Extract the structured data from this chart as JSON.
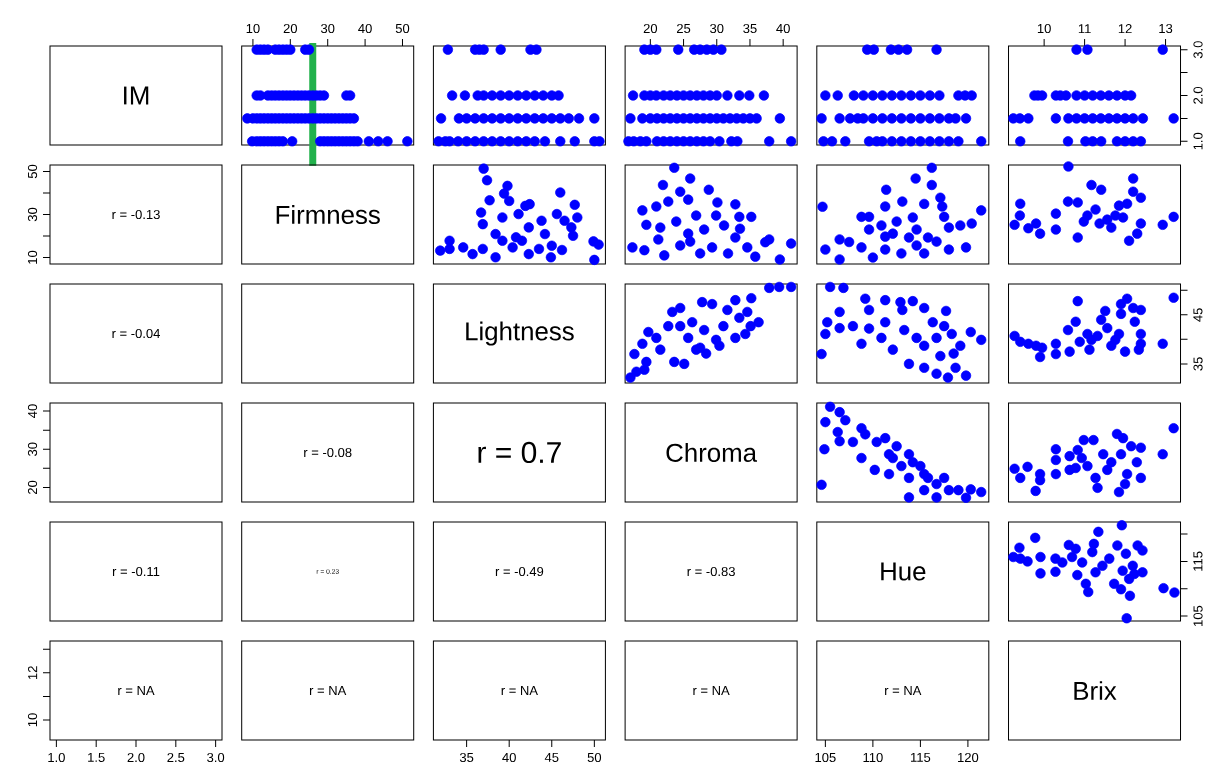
{
  "chart_data": [
    {
      "type": "other",
      "title": "IM"
    },
    {
      "type": "scatter",
      "color": "#0000ff",
      "marker": "circle",
      "xlim": [
        7,
        53
      ],
      "ylim": [
        0.92,
        3.08
      ],
      "xticks": [
        10,
        20,
        30,
        40,
        50
      ],
      "tick_labels": "x",
      "ref_lines": [
        {
          "axis": "x",
          "value": 26,
          "color": "#22b14c"
        }
      ],
      "x": [
        11,
        12,
        13,
        14,
        16,
        17,
        18,
        19,
        20,
        24,
        25,
        11,
        12,
        14,
        15,
        16,
        17,
        18,
        19,
        20,
        21,
        22,
        23,
        24,
        25,
        26,
        27,
        28,
        29,
        35,
        36,
        8.5,
        10,
        11,
        12,
        13,
        14,
        15,
        16,
        17,
        18,
        19,
        20,
        21,
        22,
        23,
        24,
        25,
        26,
        27,
        28,
        29,
        30,
        31,
        32,
        33,
        34,
        35,
        36,
        37,
        9.8,
        11,
        12,
        13,
        14,
        15,
        16,
        17,
        18,
        20.5,
        28,
        29,
        30,
        31,
        32,
        33,
        34,
        35,
        36,
        37,
        38,
        41,
        43.5,
        46,
        51.3
      ],
      "values": [
        3,
        3,
        3,
        3,
        3,
        3,
        3,
        3,
        3,
        3,
        3,
        2,
        2,
        2,
        2,
        2,
        2,
        2,
        2,
        2,
        2,
        2,
        2,
        2,
        2,
        2,
        2,
        2,
        2,
        2,
        2,
        1.5,
        1.5,
        1.5,
        1.5,
        1.5,
        1.5,
        1.5,
        1.5,
        1.5,
        1.5,
        1.5,
        1.5,
        1.5,
        1.5,
        1.5,
        1.5,
        1.5,
        1.5,
        1.5,
        1.5,
        1.5,
        1.5,
        1.5,
        1.5,
        1.5,
        1.5,
        1.5,
        1.5,
        1.5,
        1,
        1,
        1,
        1,
        1,
        1,
        1,
        1,
        1,
        1,
        1,
        1,
        1,
        1,
        1,
        1,
        1,
        1,
        1,
        1,
        1,
        1,
        1,
        1,
        1
      ]
    },
    {
      "type": "scatter",
      "color": "#0000ff",
      "marker": "circle",
      "xlim": [
        31.1,
        51.3
      ],
      "ylim": [
        0.92,
        3.08
      ],
      "tick_labels": false,
      "x": [
        32.8,
        36,
        36.5,
        37,
        39,
        42.5,
        43.2,
        33.3,
        34.8,
        36.3,
        37,
        38,
        39,
        40,
        41,
        42,
        43,
        44,
        45,
        45.8,
        32,
        34.1,
        35,
        36,
        37,
        38,
        39,
        40,
        41,
        42,
        43,
        44,
        45,
        46,
        47,
        48.2,
        50,
        31.7,
        32.5,
        33,
        34,
        35,
        36,
        37,
        38,
        39,
        40,
        41,
        42,
        43,
        44.2,
        46,
        47.7,
        50,
        50.6
      ],
      "values": [
        3,
        3,
        3,
        3,
        3,
        3,
        3,
        2,
        2,
        2,
        2,
        2,
        2,
        2,
        2,
        2,
        2,
        2,
        2,
        2,
        1.5,
        1.5,
        1.5,
        1.5,
        1.5,
        1.5,
        1.5,
        1.5,
        1.5,
        1.5,
        1.5,
        1.5,
        1.5,
        1.5,
        1.5,
        1.5,
        1.5,
        1,
        1,
        1,
        1,
        1,
        1,
        1,
        1,
        1,
        1,
        1,
        1,
        1,
        1,
        1,
        1,
        1,
        1
      ]
    },
    {
      "type": "scatter",
      "color": "#0000ff",
      "marker": "circle",
      "xlim": [
        16.2,
        42.1
      ],
      "ylim": [
        0.92,
        3.08
      ],
      "xticks": [
        20,
        25,
        30,
        35,
        40
      ],
      "tick_labels": "x",
      "x": [
        19.1,
        20,
        20.9,
        24.2,
        26.6,
        27.5,
        28.5,
        29.5,
        30.7,
        17.4,
        19.1,
        20,
        20.9,
        22,
        23,
        24,
        25,
        26,
        27,
        28,
        29,
        30,
        31.6,
        33.4,
        34.9,
        37.1,
        17,
        18.8,
        20,
        21,
        22,
        23,
        24,
        25,
        26,
        27,
        28,
        29,
        30,
        31,
        32,
        33,
        34,
        35,
        36,
        39.5,
        16.7,
        17.5,
        18.5,
        19.4,
        21,
        22,
        23,
        24,
        25,
        26,
        27,
        28,
        29,
        30.4,
        32.2,
        33.1,
        37.9,
        41.2
      ],
      "values": [
        3,
        3,
        3,
        3,
        3,
        3,
        3,
        3,
        3,
        2,
        2,
        2,
        2,
        2,
        2,
        2,
        2,
        2,
        2,
        2,
        2,
        2,
        2,
        2,
        2,
        2,
        1.5,
        1.5,
        1.5,
        1.5,
        1.5,
        1.5,
        1.5,
        1.5,
        1.5,
        1.5,
        1.5,
        1.5,
        1.5,
        1.5,
        1.5,
        1.5,
        1.5,
        1.5,
        1.5,
        1.5,
        1,
        1,
        1,
        1,
        1,
        1,
        1,
        1,
        1,
        1,
        1,
        1,
        1,
        1,
        1,
        1,
        1,
        1
      ]
    },
    {
      "type": "scatter",
      "color": "#0000ff",
      "marker": "circle",
      "xlim": [
        104.1,
        122.2
      ],
      "ylim": [
        0.92,
        3.08
      ],
      "tick_labels": false,
      "x": [
        109.4,
        110.1,
        111.9,
        112.7,
        113.6,
        116.7,
        105,
        106.3,
        108,
        109,
        110,
        111,
        112,
        113,
        114,
        115,
        116,
        117,
        119,
        119.7,
        120.4,
        104.6,
        106.5,
        107.6,
        108.4,
        109,
        110,
        111,
        112,
        113,
        114,
        115,
        116,
        117,
        118,
        118.7,
        119.8,
        104.8,
        105.7,
        107.1,
        109.6,
        110.4,
        111,
        112,
        113,
        114,
        115,
        116,
        117,
        118,
        119,
        121.4
      ],
      "values": [
        3,
        3,
        3,
        3,
        3,
        3,
        2,
        2,
        2,
        2,
        2,
        2,
        2,
        2,
        2,
        2,
        2,
        2,
        2,
        2,
        2,
        1.5,
        1.5,
        1.5,
        1.5,
        1.5,
        1.5,
        1.5,
        1.5,
        1.5,
        1.5,
        1.5,
        1.5,
        1.5,
        1.5,
        1.5,
        1.5,
        1,
        1,
        1,
        1,
        1,
        1,
        1,
        1,
        1,
        1,
        1,
        1,
        1,
        1,
        1
      ]
    },
    {
      "type": "scatter",
      "color": "#0000ff",
      "marker": "circle",
      "xlim": [
        9.12,
        13.37
      ],
      "ylim": [
        0.92,
        3.08
      ],
      "xticks": [
        10,
        11,
        12,
        13
      ],
      "yticks": [
        {
          "value": 1,
          "label": "1.0"
        },
        {
          "value": 1.5,
          "label": null
        },
        {
          "value": 2,
          "label": "2.0"
        },
        {
          "value": 2.5,
          "label": null
        },
        {
          "value": 3,
          "label": "3.0"
        }
      ],
      "x": [
        10.8,
        11.07,
        12.93,
        9.76,
        9.85,
        9.95,
        10.29,
        10.4,
        10.54,
        10.8,
        11,
        11.2,
        11.4,
        11.6,
        11.8,
        12,
        12.15,
        9.24,
        9.4,
        9.61,
        10.29,
        10.6,
        10.8,
        11,
        11.2,
        11.4,
        11.6,
        11.8,
        12,
        12.2,
        12.44,
        13.2,
        9.41,
        10.59,
        11.02,
        11.2,
        11.41,
        11.8,
        12,
        12.2,
        12.39
      ],
      "values": [
        3,
        3,
        3,
        2,
        2,
        2,
        2,
        2,
        2,
        2,
        2,
        2,
        2,
        2,
        2,
        2,
        2,
        1.5,
        1.5,
        1.5,
        1.5,
        1.5,
        1.5,
        1.5,
        1.5,
        1.5,
        1.5,
        1.5,
        1.5,
        1.5,
        1.5,
        1.5,
        1,
        1,
        1,
        1,
        1,
        1,
        1,
        1,
        1
      ]
    },
    {
      "type": "scatter",
      "annotations": [
        "r = -0.13"
      ],
      "xlim": [
        0.92,
        3.08
      ],
      "ylim": [
        7,
        53
      ],
      "yticks": [
        10,
        {
          "value": 20,
          "label": null
        },
        30,
        {
          "value": 40,
          "label": null
        },
        50
      ],
      "tick_labels": "y"
    },
    {
      "type": "other",
      "title": "Firmness"
    },
    {
      "type": "scatter",
      "color": "#0000ff",
      "marker": "circle",
      "xlim": [
        31.1,
        51.3
      ],
      "ylim": [
        7,
        53
      ],
      "tick_labels": false,
      "x": [
        37,
        37.4,
        39.8,
        39.4,
        46,
        47.7,
        37.7,
        42.4,
        48,
        46.5,
        47.3,
        45.6,
        36.7,
        36.9,
        39.2,
        41.1,
        43.8,
        42.3,
        38.4,
        40.8,
        47.5,
        45,
        46.2,
        49.9,
        50.5,
        50,
        31.9,
        33,
        34.6,
        35.7,
        36.9,
        38.4,
        40.4,
        42.3,
        43.5,
        44.9,
        41.5,
        39.2,
        40,
        41.9,
        33,
        44.2
      ],
      "values": [
        51.3,
        45.9,
        43.3,
        39.7,
        40.2,
        34.5,
        36.6,
        34.8,
        28.6,
        27.1,
        24,
        30.2,
        30.9,
        25.5,
        28.6,
        30.2,
        27.1,
        24,
        20.9,
        19.4,
        20.1,
        15.5,
        13.5,
        17.5,
        16,
        8.9,
        13.2,
        17.8,
        14.7,
        11.6,
        14,
        10.1,
        14.7,
        11.6,
        14,
        10.1,
        17.8,
        17.8,
        36.3,
        34,
        14,
        20.9
      ]
    },
    {
      "type": "scatter",
      "color": "#0000ff",
      "marker": "circle",
      "xlim": [
        16.2,
        42.1
      ],
      "ylim": [
        7,
        53
      ],
      "tick_labels": false,
      "x": [
        23.6,
        21.9,
        26,
        24.5,
        28.8,
        18.8,
        20.9,
        22.7,
        25.7,
        32.8,
        30.1,
        35.2,
        33.4,
        19.4,
        21.5,
        23.9,
        26.9,
        28.1,
        31.1,
        33.5,
        17.3,
        19.1,
        21.2,
        22.1,
        24.5,
        26,
        27.5,
        29.3,
        31.7,
        32.8,
        34.6,
        35.8,
        37.3,
        37.9,
        41.2,
        39.5,
        29.9,
        25.7
      ],
      "values": [
        51.7,
        43.7,
        46.7,
        40.6,
        41.5,
        31.9,
        33.7,
        36,
        36.9,
        34.7,
        35.6,
        28.9,
        28.9,
        25.2,
        23.9,
        26.7,
        29.5,
        23,
        24.9,
        23.4,
        14.7,
        13.4,
        18.4,
        11,
        15.6,
        17.4,
        11.9,
        14.7,
        11.9,
        19.3,
        14.7,
        10.4,
        17.1,
        18.4,
        16.5,
        9.1,
        29.5,
        21.1
      ]
    },
    {
      "type": "scatter",
      "color": "#0000ff",
      "marker": "circle",
      "xlim": [
        104.1,
        122.2
      ],
      "ylim": [
        7,
        53
      ],
      "tick_labels": false,
      "x": [
        116.2,
        114.5,
        116.2,
        111.4,
        113.1,
        111.3,
        115.4,
        117.1,
        117.3,
        104.7,
        108.8,
        109.6,
        110.9,
        112.5,
        114.2,
        117.5,
        118,
        119.2,
        120.4,
        121.4,
        109.6,
        112.1,
        114.6,
        115.8,
        105,
        106.5,
        107.5,
        108.8,
        106.5,
        110,
        111.3,
        113,
        114.6,
        115.4,
        116.7,
        118,
        119.6,
        119.8,
        113.8,
        111.3
      ],
      "values": [
        51.7,
        46.7,
        43.7,
        41.5,
        36,
        33.7,
        34.9,
        37.8,
        33.7,
        33.6,
        28.9,
        28.9,
        24.9,
        26.7,
        28.6,
        28.9,
        23.9,
        24.9,
        25.8,
        31.9,
        23,
        21.1,
        23,
        19.3,
        13.7,
        18.4,
        17.2,
        14.7,
        9.1,
        10,
        13.7,
        11.9,
        15.6,
        11.9,
        17.4,
        13.7,
        null,
        14.7,
        19.3,
        19.7
      ]
    },
    {
      "type": "scatter",
      "color": "#0000ff",
      "marker": "circle",
      "xlim": [
        9.12,
        13.37
      ],
      "ylim": [
        7,
        53
      ],
      "tick_labels": false,
      "x": [
        10.6,
        9.27,
        9.4,
        9.41,
        9.61,
        9.8,
        9.9,
        10.29,
        10.29,
        10.59,
        10.83,
        10.83,
        10.98,
        11.17,
        11.41,
        11.27,
        11.56,
        11.85,
        12.05,
        12.2,
        12.2,
        12.39,
        12.39,
        12.1,
        12.3,
        11.95,
        11.66,
        11.37,
        11.07,
        12.93,
        13.2,
        11.76
      ],
      "values": [
        52.3,
        25.2,
        29.5,
        35,
        23.6,
        25.8,
        21.1,
        30.4,
        23,
        36,
        35.6,
        19.3,
        26.7,
        43.7,
        41.5,
        32.3,
        27.6,
        34.1,
        35,
        46.7,
        40.6,
        37.8,
        25.8,
        17.8,
        21.1,
        28.6,
        23.9,
        25.8,
        29.5,
        25.2,
        28.9,
        29.5
      ]
    },
    {
      "type": "other",
      "annotations": [
        "r = -0.04"
      ]
    },
    {
      "type": "other"
    },
    {
      "type": "other",
      "title": "Lightness"
    },
    {
      "type": "scatter",
      "color": "#0000ff",
      "marker": "circle",
      "xlim": [
        16.2,
        42.1
      ],
      "ylim": [
        31.1,
        51.3
      ],
      "tick_labels": false,
      "x": [
        17,
        17.9,
        19.1,
        17.6,
        18.8,
        19.7,
        20.9,
        19.4,
        21.5,
        22.7,
        23.3,
        24.5,
        23.6,
        25.1,
        25.7,
        26.9,
        28.1,
        27.8,
        29.3,
        28.4,
        29.9,
        31,
        31.6,
        32.8,
        33.4,
        34.6,
        35.2,
        34.3,
        32.8,
        36.3,
        35.1,
        37.9,
        39.4,
        41.2,
        26.3,
        24.5,
        27.5,
        30.4
      ],
      "values": [
        32.2,
        33.4,
        33.8,
        37,
        39.1,
        41.5,
        40.3,
        35.4,
        37.9,
        42.7,
        45.6,
        46.4,
        35.4,
        35,
        40.3,
        37.9,
        41.9,
        47.6,
        47.2,
        37.1,
        39.9,
        42.7,
        46,
        48,
        44.4,
        45.6,
        48.4,
        41.1,
        40.3,
        43.5,
        42.7,
        50.5,
        50.7,
        50.7,
        43.5,
        42.7,
        38.3,
        38.7
      ]
    },
    {
      "type": "scatter",
      "color": "#0000ff",
      "marker": "circle",
      "xlim": [
        104.1,
        122.2
      ],
      "ylim": [
        31.1,
        51.3
      ],
      "tick_labels": false,
      "x": [
        105.5,
        106.9,
        104.6,
        105,
        105.2,
        106.5,
        106.5,
        107.9,
        108.8,
        109.2,
        109.6,
        111.3,
        112.9,
        114.2,
        113.1,
        115.4,
        117.7,
        109.6,
        111.3,
        113.3,
        112.1,
        113.8,
        115.4,
        115.4,
        116.7,
        117.1,
        117.5,
        118.3,
        119.2,
        118.5,
        118.7,
        117.9,
        119.8,
        120.3,
        121.4,
        116.7,
        110.9,
        114.6,
        116.3
      ],
      "values": [
        50.7,
        50.5,
        37,
        41.1,
        43.5,
        45.6,
        42.3,
        42.7,
        39.1,
        48.3,
        46,
        48,
        47.6,
        47.8,
        46,
        46.4,
        45.8,
        42.2,
        43.5,
        41.9,
        37.9,
        35,
        34.2,
        38.7,
        40.3,
        36.6,
        42.7,
        41.1,
        38.7,
        37.1,
        34.2,
        32.2,
        32.6,
        41.5,
        39.9,
        33,
        40.3,
        40.3,
        43.5
      ]
    },
    {
      "type": "scatter",
      "color": "#0000ff",
      "marker": "circle",
      "xlim": [
        9.12,
        13.37
      ],
      "ylim": [
        31.1,
        51.3
      ],
      "yticks": [
        35,
        {
          "value": 40,
          "label": null
        },
        45,
        {
          "value": 50,
          "label": null
        }
      ],
      "tick_labels": "y",
      "x": [
        9.27,
        9.41,
        9.61,
        9.8,
        9.95,
        9.9,
        10.29,
        10.29,
        10.59,
        10.83,
        10.78,
        10.63,
        10.88,
        11.07,
        11.17,
        11.32,
        11.41,
        11.51,
        11.12,
        11.66,
        11.85,
        11.9,
        11.9,
        12.05,
        12,
        12.2,
        12.24,
        12.39,
        12.39,
        12.39,
        12.34,
        12.93,
        13.2,
        11.56,
        11.76
      ],
      "values": [
        40.7,
        39.5,
        39.1,
        38.7,
        38.3,
        36.4,
        39.1,
        37,
        41.9,
        47.8,
        43.6,
        37.5,
        39.5,
        41.1,
        39.9,
        40.7,
        44,
        45.8,
        37.9,
        38.7,
        41.1,
        47.2,
        45.2,
        48.3,
        37.5,
        46.4,
        43.6,
        46,
        41.1,
        39.1,
        37.9,
        39.1,
        48.5,
        42.3,
        39.9
      ]
    },
    {
      "type": "scatter",
      "xlim": [
        0.92,
        3.08
      ],
      "ylim": [
        16.2,
        42.1
      ],
      "yticks": [
        20,
        {
          "value": 25,
          "label": null
        },
        30,
        {
          "value": 35,
          "label": null
        },
        40
      ],
      "tick_labels": "y"
    },
    {
      "type": "other",
      "annotations": [
        "r = -0.08"
      ]
    },
    {
      "type": "other",
      "annotations": [
        "r = 0.7"
      ]
    },
    {
      "type": "other",
      "title": "Chroma"
    },
    {
      "type": "scatter",
      "color": "#0000ff",
      "marker": "circle",
      "xlim": [
        104.1,
        122.2
      ],
      "ylim": [
        16.2,
        42.1
      ],
      "tick_labels": false,
      "x": [
        105.5,
        106.5,
        105,
        107.1,
        106.3,
        106.5,
        104.9,
        104.6,
        107.9,
        108.8,
        109.2,
        108.8,
        110.2,
        110.4,
        111.3,
        111.7,
        111.7,
        112.5,
        113.8,
        114.2,
        113,
        115,
        115.4,
        115.8,
        113.8,
        115.4,
        116.7,
        117.5,
        118,
        119,
        119.8,
        120.3,
        121.4,
        116.7,
        113.8,
        112.1
      ],
      "values": [
        41.1,
        39.7,
        37.1,
        37.6,
        34.5,
        32.1,
        30,
        20.7,
        31.9,
        35.5,
        33.9,
        27.7,
        24.6,
        31.9,
        32.9,
        28.7,
        23.5,
        30.8,
        28.7,
        26.6,
        25.6,
        25.6,
        23.5,
        22.5,
        17.4,
        19.3,
        20.9,
        22.5,
        19.3,
        19.3,
        17.3,
        19.5,
        18.8,
        17.4,
        22.5,
        27.7
      ]
    },
    {
      "type": "scatter",
      "color": "#0000ff",
      "marker": "circle",
      "xlim": [
        9.12,
        13.37
      ],
      "ylim": [
        16.2,
        42.1
      ],
      "tick_labels": false,
      "x": [
        9.27,
        9.41,
        9.59,
        9.79,
        9.9,
        9.9,
        10.29,
        10.29,
        10.29,
        10.63,
        10.63,
        10.78,
        10.93,
        10.98,
        11.22,
        11.07,
        11.27,
        11.32,
        11.46,
        11.66,
        11.8,
        11.95,
        11.9,
        11.85,
        12.05,
        12.15,
        12.29,
        12.39,
        12.39,
        12,
        12.93,
        13.2,
        11.56,
        10.83
      ],
      "values": [
        24.9,
        22.5,
        25.4,
        19.1,
        23.5,
        21.9,
        30,
        27.2,
        23.5,
        28.2,
        24.6,
        25.1,
        27.7,
        32.4,
        32.4,
        25.6,
        22.5,
        19.9,
        28.7,
        26.6,
        34,
        32.9,
        28.7,
        18.8,
        23.5,
        30.8,
        26.6,
        30.4,
        22.5,
        20.9,
        28.7,
        35.5,
        24.6,
        29.8
      ]
    },
    {
      "type": "other",
      "annotations": [
        "r = -0.11"
      ]
    },
    {
      "type": "other",
      "annotations": [
        "r = 0.23"
      ]
    },
    {
      "type": "other",
      "annotations": [
        "r = -0.49"
      ]
    },
    {
      "type": "other",
      "annotations": [
        "r = -0.83"
      ]
    },
    {
      "type": "other",
      "title": "Hue"
    },
    {
      "type": "scatter",
      "color": "#0000ff",
      "marker": "circle",
      "xlim": [
        9.12,
        13.37
      ],
      "ylim": [
        104.1,
        122.2
      ],
      "yticks": [
        105,
        {
          "value": 110,
          "label": null
        },
        115,
        {
          "value": 120,
          "label": null
        }
      ],
      "tick_labels": "y",
      "x": [
        9.24,
        9.39,
        9.41,
        9.59,
        9.78,
        9.91,
        9.91,
        10.28,
        10.28,
        10.45,
        10.61,
        10.69,
        10.78,
        10.82,
        11.03,
        11.09,
        11.19,
        11.23,
        11.34,
        11.27,
        11.44,
        11.61,
        11.73,
        11.81,
        11.9,
        11.92,
        11.94,
        12.02,
        12.12,
        12.04,
        12.1,
        12.19,
        12.31,
        12.43,
        12.43,
        12.23,
        12.95,
        13.22,
        10.94
      ],
      "values": [
        115.8,
        117.5,
        115.5,
        115,
        119.3,
        115.8,
        112.8,
        115.5,
        113.1,
        114.8,
        118,
        115.8,
        117.3,
        112.5,
        110.9,
        109.4,
        116.7,
        118.2,
        120.4,
        113,
        114.2,
        115.5,
        110.9,
        117.9,
        109.9,
        121.6,
        113.3,
        116.4,
        108.7,
        104.6,
        111.8,
        114.2,
        117.9,
        117,
        113,
        112.7,
        110.1,
        109.3,
        114.8
      ]
    },
    {
      "type": "scatter",
      "annotations": [
        "r = NA"
      ],
      "xlim": [
        0.92,
        3.08
      ],
      "xticks": [
        {
          "value": 1,
          "label": "1.0"
        },
        1.5,
        {
          "value": 2,
          "label": "2.0"
        },
        2.5,
        {
          "value": 3,
          "label": "3.0"
        }
      ],
      "ylim": [
        9.15,
        13.35
      ],
      "yticks": [
        10,
        {
          "value": 11,
          "label": null
        },
        12,
        {
          "value": 13,
          "label": null
        }
      ]
    },
    {
      "type": "other",
      "annotations": [
        "r = NA"
      ]
    },
    {
      "type": "scatter",
      "annotations": [
        "r = NA"
      ],
      "xlim": [
        31.1,
        51.3
      ],
      "xticks": [
        35,
        40,
        45,
        50
      ],
      "ylim": [
        9.15,
        13.35
      ],
      "tick_labels": "x"
    },
    {
      "type": "other",
      "annotations": [
        "r = NA"
      ]
    },
    {
      "type": "scatter",
      "annotations": [
        "r = NA"
      ],
      "xlim": [
        104.1,
        122.2
      ],
      "xticks": [
        105,
        110,
        115,
        120
      ],
      "ylim": [
        9.15,
        13.35
      ],
      "tick_labels": "x"
    },
    {
      "type": "other",
      "title": "Brix"
    }
  ]
}
